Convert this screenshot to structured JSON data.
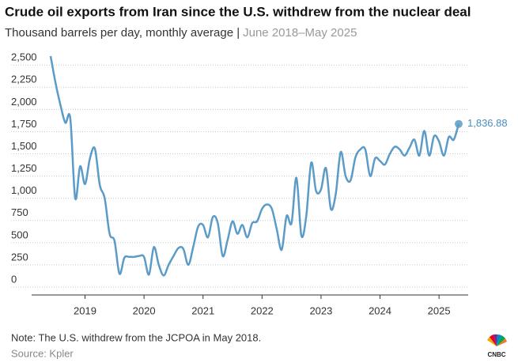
{
  "chart_data": {
    "type": "line",
    "title": "Crude oil exports from Iran since the U.S. withdrew from the nuclear deal",
    "subtitle": "Thousand barrels per day, monthly average |",
    "subtitle_period": "June 2018–May 2025",
    "note": "Note: The U.S. withdrew from the JCPOA in May 2018.",
    "source": "Source: Kpler",
    "brand": "CNBC",
    "x": [
      "2018-06",
      "2018-07",
      "2018-08",
      "2018-09",
      "2018-10",
      "2018-11",
      "2018-12",
      "2019-01",
      "2019-02",
      "2019-03",
      "2019-04",
      "2019-05",
      "2019-06",
      "2019-07",
      "2019-08",
      "2019-09",
      "2019-10",
      "2019-11",
      "2019-12",
      "2020-01",
      "2020-02",
      "2020-03",
      "2020-04",
      "2020-05",
      "2020-06",
      "2020-07",
      "2020-08",
      "2020-09",
      "2020-10",
      "2020-11",
      "2020-12",
      "2021-01",
      "2021-02",
      "2021-03",
      "2021-04",
      "2021-05",
      "2021-06",
      "2021-07",
      "2021-08",
      "2021-09",
      "2021-10",
      "2021-11",
      "2021-12",
      "2022-01",
      "2022-02",
      "2022-03",
      "2022-04",
      "2022-05",
      "2022-06",
      "2022-07",
      "2022-08",
      "2022-09",
      "2022-10",
      "2022-11",
      "2022-12",
      "2023-01",
      "2023-02",
      "2023-03",
      "2023-04",
      "2023-05",
      "2023-06",
      "2023-07",
      "2023-08",
      "2023-09",
      "2023-10",
      "2023-11",
      "2023-12",
      "2024-01",
      "2024-02",
      "2024-03",
      "2024-04",
      "2024-05",
      "2024-06",
      "2024-07",
      "2024-08",
      "2024-09",
      "2024-10",
      "2024-11",
      "2024-12",
      "2025-01",
      "2025-02",
      "2025-03",
      "2025-04",
      "2025-05"
    ],
    "series": [
      {
        "name": "Crude oil exports",
        "color": "#5b9bc8",
        "values": [
          2600,
          2300,
          2050,
          1850,
          1900,
          1000,
          1360,
          1160,
          1450,
          1560,
          1150,
          1000,
          600,
          520,
          150,
          330,
          340,
          340,
          350,
          340,
          140,
          450,
          250,
          130,
          250,
          350,
          440,
          430,
          250,
          450,
          680,
          700,
          560,
          790,
          720,
          350,
          530,
          740,
          600,
          700,
          560,
          720,
          740,
          880,
          930,
          880,
          650,
          420,
          800,
          720,
          1230,
          580,
          800,
          1400,
          1080,
          1100,
          1340,
          880,
          1050,
          1520,
          1250,
          1200,
          1460,
          1550,
          1550,
          1250,
          1450,
          1420,
          1380,
          1500,
          1580,
          1550,
          1480,
          1570,
          1660,
          1480,
          1760,
          1480,
          1700,
          1640,
          1480,
          1690,
          1660,
          1836.88
        ],
        "value_labels": [
          null,
          null,
          null,
          null,
          null,
          null,
          null,
          null,
          null,
          null,
          null,
          null,
          null,
          null,
          null,
          null,
          null,
          null,
          null,
          null,
          null,
          null,
          null,
          null,
          null,
          null,
          null,
          null,
          null,
          null,
          null,
          null,
          null,
          null,
          null,
          null,
          null,
          null,
          null,
          null,
          null,
          null,
          null,
          null,
          null,
          null,
          null,
          null,
          null,
          null,
          null,
          null,
          null,
          null,
          null,
          null,
          null,
          null,
          null,
          null,
          null,
          null,
          null,
          null,
          null,
          null,
          null,
          null,
          null,
          null,
          null,
          null,
          null,
          null,
          null,
          null,
          null,
          null,
          null,
          null,
          null,
          null,
          null,
          "1,836.88"
        ]
      }
    ],
    "xticks": [
      {
        "value": "2019-01",
        "label": "2019"
      },
      {
        "value": "2020-01",
        "label": "2020"
      },
      {
        "value": "2021-01",
        "label": "2021"
      },
      {
        "value": "2022-01",
        "label": "2022"
      },
      {
        "value": "2023-01",
        "label": "2023"
      },
      {
        "value": "2024-01",
        "label": "2024"
      },
      {
        "value": "2025-01",
        "label": "2025"
      }
    ],
    "ylim": [
      0,
      2600
    ],
    "yticks": [
      0,
      250,
      500,
      750,
      {
        "value": 1000,
        "label": "1,000"
      },
      {
        "value": 1250,
        "label": "1,250"
      },
      {
        "value": 1500,
        "label": "1,500"
      },
      {
        "value": 1750,
        "label": "1,750"
      },
      {
        "value": 2000,
        "label": "2,000"
      },
      {
        "value": 2250,
        "label": "2,250"
      },
      {
        "value": 2500,
        "label": "2,500"
      }
    ],
    "grid": true
  }
}
